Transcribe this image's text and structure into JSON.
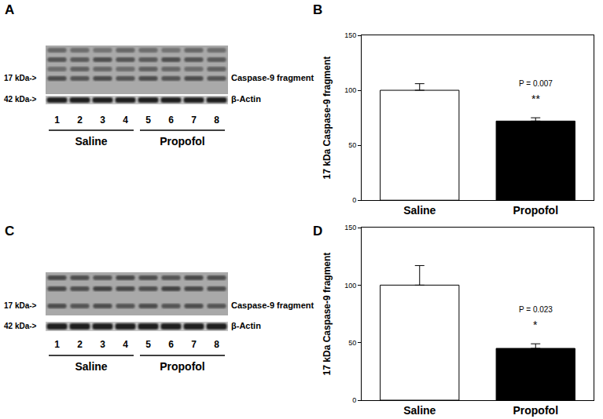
{
  "blots": [
    {
      "panel_label": "A",
      "marker_label": "17 kDa->",
      "band_label": "Caspase-9 fragment",
      "loading_marker_label": "42 kDa->",
      "loading_label": "β-Actin",
      "lanes": [
        "1",
        "2",
        "3",
        "4",
        "5",
        "6",
        "7",
        "8"
      ],
      "groups": [
        {
          "name": "Saline",
          "lanes": [
            "1",
            "2",
            "3",
            "4"
          ]
        },
        {
          "name": "Propofol",
          "lanes": [
            "5",
            "6",
            "7",
            "8"
          ]
        }
      ]
    },
    {
      "panel_label": "C",
      "marker_label": "17 kDa->",
      "band_label": "Caspase-9 fragment",
      "loading_marker_label": "42 kDa->",
      "loading_label": "β-Actin",
      "lanes": [
        "1",
        "2",
        "3",
        "4",
        "5",
        "6",
        "7",
        "8"
      ],
      "groups": [
        {
          "name": "Saline",
          "lanes": [
            "1",
            "2",
            "3",
            "4"
          ]
        },
        {
          "name": "Propofol",
          "lanes": [
            "5",
            "6",
            "7",
            "8"
          ]
        }
      ]
    }
  ],
  "chart_data": [
    {
      "type": "bar",
      "panel_label": "B",
      "categories": [
        "Saline",
        "Propofol"
      ],
      "values": [
        100,
        72
      ],
      "errors": [
        6,
        3
      ],
      "colors": [
        "#ffffff",
        "#000000"
      ],
      "y_label": "17 kDa Caspase-9 fragment",
      "ylim": [
        0,
        150
      ],
      "yticks": [
        0,
        50,
        100,
        150
      ],
      "annotations": [
        {
          "category": "Propofol",
          "text": "P = 0.007"
        },
        {
          "category": "Propofol",
          "text": "**"
        }
      ]
    },
    {
      "type": "bar",
      "panel_label": "D",
      "categories": [
        "Saline",
        "Propofol"
      ],
      "values": [
        100,
        45
      ],
      "errors": [
        17,
        4
      ],
      "colors": [
        "#ffffff",
        "#000000"
      ],
      "y_label": "17 kDa Caspase-9 fragment",
      "ylim": [
        0,
        150
      ],
      "yticks": [
        0,
        50,
        100,
        150
      ],
      "annotations": [
        {
          "category": "Propofol",
          "text": "P = 0.023"
        },
        {
          "category": "Propofol",
          "text": "*"
        }
      ]
    }
  ]
}
